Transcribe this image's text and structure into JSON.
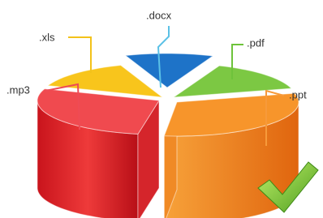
{
  "labels": {
    "docx": ".docx",
    "xls": ".xls",
    "pdf": ".pdf",
    "mp3": ".mp3",
    "ppt": ".ppt"
  }
}
